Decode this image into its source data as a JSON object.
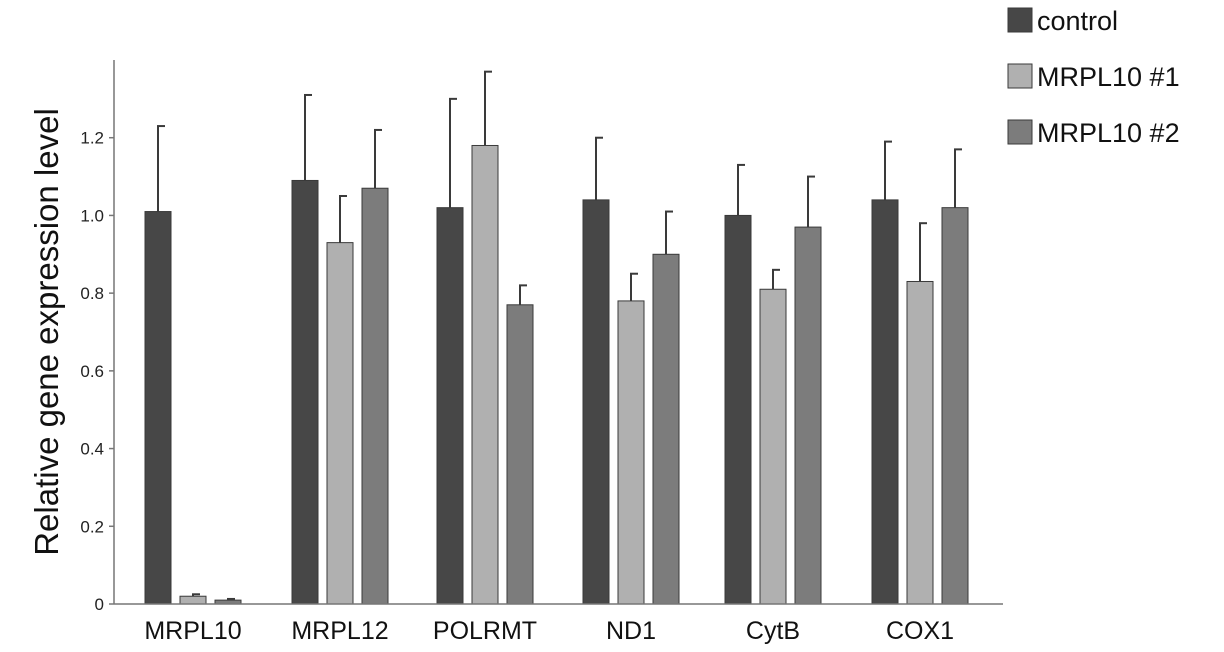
{
  "chart_data": {
    "type": "bar",
    "title": "",
    "xlabel": "",
    "ylabel": "Relative gene expression level",
    "ylim": [
      0,
      1.4
    ],
    "yticks": [
      0,
      0.2,
      0.4,
      0.6,
      0.8,
      1.0,
      1.2
    ],
    "ytick_labels": [
      "0",
      "0.2",
      "0.4",
      "0.6",
      "0.8",
      "1.0",
      "1.2"
    ],
    "grid": false,
    "legend_position": "top-right",
    "categories": [
      "MRPL10",
      "MRPL12",
      "POLRMT",
      "ND1",
      "CytB",
      "COX1"
    ],
    "series": [
      {
        "name": "control",
        "color": "#474747",
        "values": [
          1.01,
          1.09,
          1.02,
          1.04,
          1.0,
          1.04
        ],
        "errors": [
          0.22,
          0.22,
          0.28,
          0.16,
          0.13,
          0.15
        ]
      },
      {
        "name": "MRPL10 #1",
        "color": "#b0b0b0",
        "values": [
          0.02,
          0.93,
          1.18,
          0.78,
          0.81,
          0.83
        ],
        "errors": [
          0.005,
          0.12,
          0.19,
          0.07,
          0.05,
          0.15
        ]
      },
      {
        "name": "MRPL10 #2",
        "color": "#7c7c7c",
        "values": [
          0.01,
          1.07,
          0.77,
          0.9,
          0.97,
          1.02
        ],
        "errors": [
          0.003,
          0.15,
          0.05,
          0.11,
          0.13,
          0.15
        ]
      }
    ]
  }
}
